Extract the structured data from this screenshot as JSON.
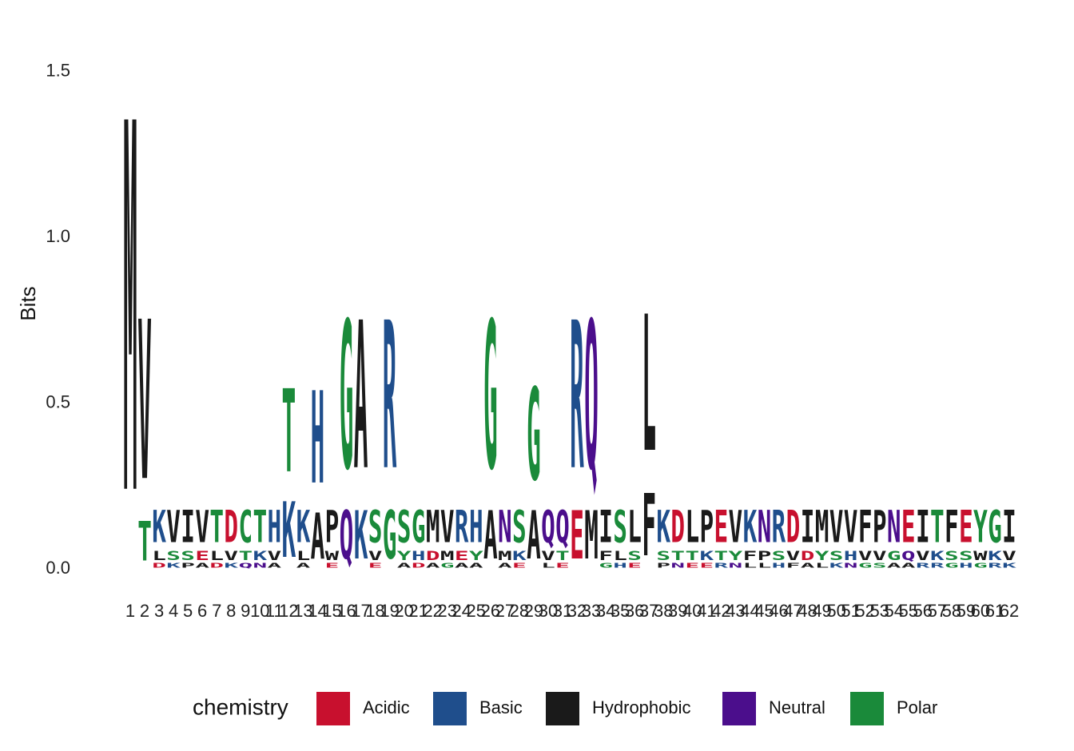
{
  "chart_data": {
    "type": "sequence-logo",
    "title": "",
    "ylabel": "Bits",
    "xlabel": "",
    "ylim": [
      0,
      1.6
    ],
    "yticks": [
      {
        "value": 0,
        "label": "0.0"
      },
      {
        "value": 0.5,
        "label": "0.5"
      },
      {
        "value": 1.0,
        "label": "1.0"
      },
      {
        "value": 1.5,
        "label": "1.5"
      }
    ],
    "grid": false,
    "legend_position": "bottom",
    "legend": {
      "title": "chemistry",
      "items": [
        {
          "name": "Acidic",
          "color": "#C8102E"
        },
        {
          "name": "Basic",
          "color": "#1F4E8C"
        },
        {
          "name": "Hydrophobic",
          "color": "#1A1A1A"
        },
        {
          "name": "Neutral",
          "color": "#4B0E8C"
        },
        {
          "name": "Polar",
          "color": "#1A8A3A"
        }
      ]
    },
    "chemistry_groups": {
      "Acidic": [
        "D",
        "E"
      ],
      "Basic": [
        "K",
        "R",
        "H"
      ],
      "Hydrophobic": [
        "A",
        "V",
        "L",
        "I",
        "P",
        "W",
        "F",
        "M"
      ],
      "Neutral": [
        "Q",
        "N"
      ],
      "Polar": [
        "G",
        "S",
        "T",
        "Y",
        "C"
      ]
    },
    "x_tick_labels": [
      "1",
      "2",
      "3",
      "4",
      "5",
      "6",
      "7",
      "8",
      "9",
      "10",
      "11",
      "12",
      "13",
      "14",
      "15",
      "16",
      "17",
      "18",
      "19",
      "20",
      "21",
      "22",
      "23",
      "24",
      "25",
      "26",
      "27",
      "28",
      "29",
      "30",
      "31",
      "32",
      "33",
      "34",
      "35",
      "36",
      "37",
      "38",
      "39",
      "40",
      "41",
      "42",
      "43",
      "44",
      "45",
      "46",
      "47",
      "48",
      "49",
      "50",
      "51",
      "52",
      "53",
      "54",
      "55",
      "56",
      "57",
      "58",
      "59",
      "60",
      "61",
      "62"
    ],
    "positions": [
      {
        "pos": 1,
        "stack": [
          {
            "letter": "M",
            "bits": 1.6
          }
        ]
      },
      {
        "pos": 2,
        "stack": [
          {
            "letter": "T",
            "bits": 0.17
          },
          {
            "letter": "V",
            "bits": 0.69
          }
        ]
      },
      {
        "pos": 3,
        "stack": [
          {
            "letter": "D",
            "bits": 0.02
          },
          {
            "letter": "L",
            "bits": 0.04
          },
          {
            "letter": "K",
            "bits": 0.14
          }
        ]
      },
      {
        "pos": 4,
        "stack": [
          {
            "letter": "K",
            "bits": 0.02
          },
          {
            "letter": "S",
            "bits": 0.04
          },
          {
            "letter": "V",
            "bits": 0.14
          }
        ]
      },
      {
        "pos": 5,
        "stack": [
          {
            "letter": "P",
            "bits": 0.02
          },
          {
            "letter": "S",
            "bits": 0.04
          },
          {
            "letter": "I",
            "bits": 0.14
          }
        ]
      },
      {
        "pos": 6,
        "stack": [
          {
            "letter": "A",
            "bits": 0.02
          },
          {
            "letter": "E",
            "bits": 0.04
          },
          {
            "letter": "V",
            "bits": 0.14
          }
        ]
      },
      {
        "pos": 7,
        "stack": [
          {
            "letter": "D",
            "bits": 0.02
          },
          {
            "letter": "L",
            "bits": 0.04
          },
          {
            "letter": "T",
            "bits": 0.14
          }
        ]
      },
      {
        "pos": 8,
        "stack": [
          {
            "letter": "K",
            "bits": 0.02
          },
          {
            "letter": "V",
            "bits": 0.04
          },
          {
            "letter": "D",
            "bits": 0.14
          }
        ]
      },
      {
        "pos": 9,
        "stack": [
          {
            "letter": "Q",
            "bits": 0.02
          },
          {
            "letter": "T",
            "bits": 0.04
          },
          {
            "letter": "C",
            "bits": 0.14
          }
        ]
      },
      {
        "pos": 10,
        "stack": [
          {
            "letter": "N",
            "bits": 0.02
          },
          {
            "letter": "K",
            "bits": 0.04
          },
          {
            "letter": "T",
            "bits": 0.14
          }
        ]
      },
      {
        "pos": 11,
        "stack": [
          {
            "letter": "A",
            "bits": 0.02
          },
          {
            "letter": "V",
            "bits": 0.04
          },
          {
            "letter": "H",
            "bits": 0.14
          }
        ]
      },
      {
        "pos": 12,
        "stack": [
          {
            "letter": "K",
            "bits": 0.24
          },
          {
            "letter": "T",
            "bits": 0.36
          }
        ]
      },
      {
        "pos": 13,
        "stack": [
          {
            "letter": "A",
            "bits": 0.02
          },
          {
            "letter": "L",
            "bits": 0.04
          },
          {
            "letter": "K",
            "bits": 0.14
          }
        ]
      },
      {
        "pos": 14,
        "stack": [
          {
            "letter": "A",
            "bits": 0.2
          },
          {
            "letter": "H",
            "bits": 0.4
          }
        ]
      },
      {
        "pos": 15,
        "stack": [
          {
            "letter": "E",
            "bits": 0.02
          },
          {
            "letter": "W",
            "bits": 0.04
          },
          {
            "letter": "P",
            "bits": 0.14
          }
        ]
      },
      {
        "pos": 16,
        "stack": [
          {
            "letter": "Q",
            "bits": 0.21
          },
          {
            "letter": "G",
            "bits": 0.64
          }
        ]
      },
      {
        "pos": 17,
        "stack": [
          {
            "letter": "K",
            "bits": 0.21
          },
          {
            "letter": "A",
            "bits": 0.64
          }
        ]
      },
      {
        "pos": 18,
        "stack": [
          {
            "letter": "E",
            "bits": 0.02
          },
          {
            "letter": "V",
            "bits": 0.04
          },
          {
            "letter": "S",
            "bits": 0.14
          }
        ]
      },
      {
        "pos": 19,
        "stack": [
          {
            "letter": "G",
            "bits": 0.21
          },
          {
            "letter": "R",
            "bits": 0.64
          }
        ]
      },
      {
        "pos": 20,
        "stack": [
          {
            "letter": "A",
            "bits": 0.02
          },
          {
            "letter": "Y",
            "bits": 0.04
          },
          {
            "letter": "S",
            "bits": 0.14
          }
        ]
      },
      {
        "pos": 21,
        "stack": [
          {
            "letter": "D",
            "bits": 0.02
          },
          {
            "letter": "H",
            "bits": 0.04
          },
          {
            "letter": "G",
            "bits": 0.14
          }
        ]
      },
      {
        "pos": 22,
        "stack": [
          {
            "letter": "A",
            "bits": 0.02
          },
          {
            "letter": "D",
            "bits": 0.04
          },
          {
            "letter": "M",
            "bits": 0.14
          }
        ]
      },
      {
        "pos": 23,
        "stack": [
          {
            "letter": "G",
            "bits": 0.02
          },
          {
            "letter": "M",
            "bits": 0.04
          },
          {
            "letter": "V",
            "bits": 0.14
          }
        ]
      },
      {
        "pos": 24,
        "stack": [
          {
            "letter": "A",
            "bits": 0.02
          },
          {
            "letter": "E",
            "bits": 0.04
          },
          {
            "letter": "R",
            "bits": 0.14
          }
        ]
      },
      {
        "pos": 25,
        "stack": [
          {
            "letter": "A",
            "bits": 0.02
          },
          {
            "letter": "Y",
            "bits": 0.04
          },
          {
            "letter": "H",
            "bits": 0.14
          }
        ]
      },
      {
        "pos": 26,
        "stack": [
          {
            "letter": "A",
            "bits": 0.21
          },
          {
            "letter": "G",
            "bits": 0.64
          }
        ]
      },
      {
        "pos": 27,
        "stack": [
          {
            "letter": "A",
            "bits": 0.02
          },
          {
            "letter": "M",
            "bits": 0.04
          },
          {
            "letter": "N",
            "bits": 0.14
          }
        ]
      },
      {
        "pos": 28,
        "stack": [
          {
            "letter": "E",
            "bits": 0.02
          },
          {
            "letter": "K",
            "bits": 0.04
          },
          {
            "letter": "S",
            "bits": 0.14
          }
        ]
      },
      {
        "pos": 29,
        "stack": [
          {
            "letter": "A",
            "bits": 0.21
          },
          {
            "letter": "G",
            "bits": 0.4
          }
        ]
      },
      {
        "pos": 30,
        "stack": [
          {
            "letter": "L",
            "bits": 0.02
          },
          {
            "letter": "V",
            "bits": 0.04
          },
          {
            "letter": "Q",
            "bits": 0.14
          }
        ]
      },
      {
        "pos": 31,
        "stack": [
          {
            "letter": "E",
            "bits": 0.02
          },
          {
            "letter": "T",
            "bits": 0.04
          },
          {
            "letter": "Q",
            "bits": 0.14
          }
        ]
      },
      {
        "pos": 32,
        "stack": [
          {
            "letter": "E",
            "bits": 0.21
          },
          {
            "letter": "R",
            "bits": 0.64
          }
        ]
      },
      {
        "pos": 33,
        "stack": [
          {
            "letter": "M",
            "bits": 0.21
          },
          {
            "letter": "Q",
            "bits": 0.64
          }
        ]
      },
      {
        "pos": 34,
        "stack": [
          {
            "letter": "G",
            "bits": 0.02
          },
          {
            "letter": "F",
            "bits": 0.04
          },
          {
            "letter": "I",
            "bits": 0.14
          }
        ]
      },
      {
        "pos": 35,
        "stack": [
          {
            "letter": "H",
            "bits": 0.02
          },
          {
            "letter": "L",
            "bits": 0.04
          },
          {
            "letter": "S",
            "bits": 0.14
          }
        ]
      },
      {
        "pos": 36,
        "stack": [
          {
            "letter": "E",
            "bits": 0.02
          },
          {
            "letter": "S",
            "bits": 0.04
          },
          {
            "letter": "L",
            "bits": 0.14
          }
        ]
      },
      {
        "pos": 37,
        "stack": [
          {
            "letter": "F",
            "bits": 0.27
          },
          {
            "letter": "L",
            "bits": 0.59
          }
        ]
      },
      {
        "pos": 38,
        "stack": [
          {
            "letter": "P",
            "bits": 0.02
          },
          {
            "letter": "S",
            "bits": 0.04
          },
          {
            "letter": "K",
            "bits": 0.14
          }
        ]
      },
      {
        "pos": 39,
        "stack": [
          {
            "letter": "N",
            "bits": 0.02
          },
          {
            "letter": "T",
            "bits": 0.04
          },
          {
            "letter": "D",
            "bits": 0.14
          }
        ]
      },
      {
        "pos": 40,
        "stack": [
          {
            "letter": "E",
            "bits": 0.02
          },
          {
            "letter": "T",
            "bits": 0.04
          },
          {
            "letter": "L",
            "bits": 0.14
          }
        ]
      },
      {
        "pos": 41,
        "stack": [
          {
            "letter": "E",
            "bits": 0.02
          },
          {
            "letter": "K",
            "bits": 0.04
          },
          {
            "letter": "P",
            "bits": 0.14
          }
        ]
      },
      {
        "pos": 42,
        "stack": [
          {
            "letter": "R",
            "bits": 0.02
          },
          {
            "letter": "T",
            "bits": 0.04
          },
          {
            "letter": "E",
            "bits": 0.14
          }
        ]
      },
      {
        "pos": 43,
        "stack": [
          {
            "letter": "N",
            "bits": 0.02
          },
          {
            "letter": "Y",
            "bits": 0.04
          },
          {
            "letter": "V",
            "bits": 0.14
          }
        ]
      },
      {
        "pos": 44,
        "stack": [
          {
            "letter": "L",
            "bits": 0.02
          },
          {
            "letter": "F",
            "bits": 0.04
          },
          {
            "letter": "K",
            "bits": 0.14
          }
        ]
      },
      {
        "pos": 45,
        "stack": [
          {
            "letter": "L",
            "bits": 0.02
          },
          {
            "letter": "P",
            "bits": 0.04
          },
          {
            "letter": "N",
            "bits": 0.14
          }
        ]
      },
      {
        "pos": 46,
        "stack": [
          {
            "letter": "H",
            "bits": 0.02
          },
          {
            "letter": "S",
            "bits": 0.04
          },
          {
            "letter": "R",
            "bits": 0.14
          }
        ]
      },
      {
        "pos": 47,
        "stack": [
          {
            "letter": "F",
            "bits": 0.02
          },
          {
            "letter": "V",
            "bits": 0.04
          },
          {
            "letter": "D",
            "bits": 0.14
          }
        ]
      },
      {
        "pos": 48,
        "stack": [
          {
            "letter": "A",
            "bits": 0.02
          },
          {
            "letter": "D",
            "bits": 0.04
          },
          {
            "letter": "I",
            "bits": 0.14
          }
        ]
      },
      {
        "pos": 49,
        "stack": [
          {
            "letter": "L",
            "bits": 0.02
          },
          {
            "letter": "Y",
            "bits": 0.04
          },
          {
            "letter": "M",
            "bits": 0.14
          }
        ]
      },
      {
        "pos": 50,
        "stack": [
          {
            "letter": "K",
            "bits": 0.02
          },
          {
            "letter": "S",
            "bits": 0.04
          },
          {
            "letter": "V",
            "bits": 0.14
          }
        ]
      },
      {
        "pos": 51,
        "stack": [
          {
            "letter": "N",
            "bits": 0.02
          },
          {
            "letter": "H",
            "bits": 0.04
          },
          {
            "letter": "V",
            "bits": 0.14
          }
        ]
      },
      {
        "pos": 52,
        "stack": [
          {
            "letter": "G",
            "bits": 0.02
          },
          {
            "letter": "V",
            "bits": 0.04
          },
          {
            "letter": "F",
            "bits": 0.14
          }
        ]
      },
      {
        "pos": 53,
        "stack": [
          {
            "letter": "S",
            "bits": 0.02
          },
          {
            "letter": "V",
            "bits": 0.04
          },
          {
            "letter": "P",
            "bits": 0.14
          }
        ]
      },
      {
        "pos": 54,
        "stack": [
          {
            "letter": "A",
            "bits": 0.02
          },
          {
            "letter": "G",
            "bits": 0.04
          },
          {
            "letter": "N",
            "bits": 0.14
          }
        ]
      },
      {
        "pos": 55,
        "stack": [
          {
            "letter": "A",
            "bits": 0.02
          },
          {
            "letter": "Q",
            "bits": 0.04
          },
          {
            "letter": "E",
            "bits": 0.14
          }
        ]
      },
      {
        "pos": 56,
        "stack": [
          {
            "letter": "R",
            "bits": 0.02
          },
          {
            "letter": "V",
            "bits": 0.04
          },
          {
            "letter": "I",
            "bits": 0.14
          }
        ]
      },
      {
        "pos": 57,
        "stack": [
          {
            "letter": "R",
            "bits": 0.02
          },
          {
            "letter": "K",
            "bits": 0.04
          },
          {
            "letter": "T",
            "bits": 0.14
          }
        ]
      },
      {
        "pos": 58,
        "stack": [
          {
            "letter": "G",
            "bits": 0.02
          },
          {
            "letter": "S",
            "bits": 0.04
          },
          {
            "letter": "F",
            "bits": 0.14
          }
        ]
      },
      {
        "pos": 59,
        "stack": [
          {
            "letter": "H",
            "bits": 0.02
          },
          {
            "letter": "S",
            "bits": 0.04
          },
          {
            "letter": "E",
            "bits": 0.14
          }
        ]
      },
      {
        "pos": 60,
        "stack": [
          {
            "letter": "G",
            "bits": 0.02
          },
          {
            "letter": "W",
            "bits": 0.04
          },
          {
            "letter": "Y",
            "bits": 0.14
          }
        ]
      },
      {
        "pos": 61,
        "stack": [
          {
            "letter": "R",
            "bits": 0.02
          },
          {
            "letter": "K",
            "bits": 0.04
          },
          {
            "letter": "G",
            "bits": 0.14
          }
        ]
      },
      {
        "pos": 62,
        "stack": [
          {
            "letter": "K",
            "bits": 0.02
          },
          {
            "letter": "V",
            "bits": 0.04
          },
          {
            "letter": "I",
            "bits": 0.14
          }
        ]
      }
    ]
  }
}
